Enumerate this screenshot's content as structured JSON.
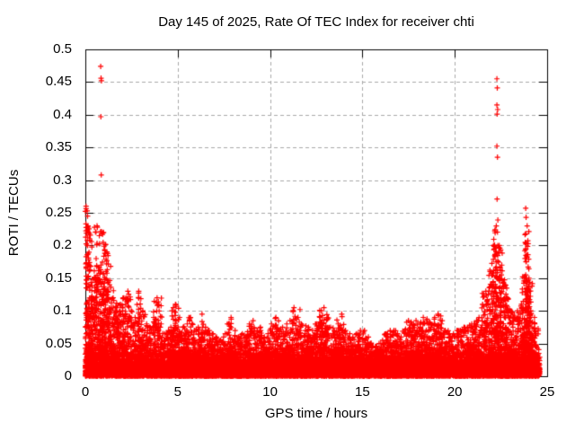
{
  "chart_data": {
    "type": "scatter",
    "title": "Day 145 of 2025, Rate Of TEC Index for receiver chti",
    "xlabel": "GPS time / hours",
    "ylabel": "ROTI / TECUs",
    "xlim": [
      0,
      25
    ],
    "ylim": [
      0,
      0.5
    ],
    "xticks": {
      "values": [
        0,
        5,
        10,
        15,
        20,
        25
      ],
      "labels": [
        "0",
        "5",
        "10",
        "15",
        "20",
        "25"
      ]
    },
    "yticks": {
      "values": [
        0,
        0.05,
        0.1,
        0.15,
        0.2,
        0.25,
        0.3,
        0.35,
        0.4,
        0.45,
        0.5
      ],
      "labels": [
        "0",
        "0.05",
        "0.1",
        "0.15",
        "0.2",
        "0.25",
        "0.3",
        "0.35",
        "0.4",
        "0.45",
        "0.5"
      ]
    },
    "grid": true,
    "grid_color": "#a9a9a9",
    "frame_color": "#000000",
    "marker": {
      "shape": "plus",
      "color": "#ff0000",
      "size": 7
    },
    "data_time_range": [
      0,
      24.6
    ],
    "baseline_band": {
      "solid_max": 0.02,
      "mottled_max": 0.05
    },
    "spike_envelope": [
      [
        0.05,
        0.26
      ],
      [
        0.15,
        0.23
      ],
      [
        0.3,
        0.12
      ],
      [
        0.5,
        0.15
      ],
      [
        0.65,
        0.23
      ],
      [
        0.85,
        0.17
      ],
      [
        1.0,
        0.22
      ],
      [
        1.15,
        0.19
      ],
      [
        1.3,
        0.14
      ],
      [
        1.5,
        0.12
      ],
      [
        1.7,
        0.1
      ],
      [
        1.9,
        0.11
      ],
      [
        2.1,
        0.12
      ],
      [
        2.3,
        0.13
      ],
      [
        2.5,
        0.1
      ],
      [
        2.7,
        0.09
      ],
      [
        2.9,
        0.13
      ],
      [
        3.1,
        0.1
      ],
      [
        3.3,
        0.08
      ],
      [
        3.5,
        0.075
      ],
      [
        3.7,
        0.09
      ],
      [
        3.9,
        0.12
      ],
      [
        4.1,
        0.08
      ],
      [
        4.3,
        0.065
      ],
      [
        4.5,
        0.07
      ],
      [
        4.7,
        0.1
      ],
      [
        4.9,
        0.11
      ],
      [
        5.1,
        0.09
      ],
      [
        5.3,
        0.075
      ],
      [
        5.5,
        0.08
      ],
      [
        5.7,
        0.09
      ],
      [
        5.9,
        0.07
      ],
      [
        6.1,
        0.075
      ],
      [
        6.3,
        0.095
      ],
      [
        6.5,
        0.075
      ],
      [
        6.7,
        0.07
      ],
      [
        6.9,
        0.065
      ],
      [
        7.1,
        0.06
      ],
      [
        7.3,
        0.055
      ],
      [
        7.5,
        0.06
      ],
      [
        7.7,
        0.08
      ],
      [
        7.9,
        0.09
      ],
      [
        8.1,
        0.07
      ],
      [
        8.3,
        0.06
      ],
      [
        8.5,
        0.065
      ],
      [
        8.7,
        0.06
      ],
      [
        8.9,
        0.08
      ],
      [
        9.1,
        0.085
      ],
      [
        9.3,
        0.07
      ],
      [
        9.5,
        0.075
      ],
      [
        9.7,
        0.06
      ],
      [
        9.9,
        0.065
      ],
      [
        10.1,
        0.08
      ],
      [
        10.3,
        0.09
      ],
      [
        10.5,
        0.07
      ],
      [
        10.7,
        0.075
      ],
      [
        10.9,
        0.08
      ],
      [
        11.1,
        0.085
      ],
      [
        11.3,
        0.105
      ],
      [
        11.5,
        0.09
      ],
      [
        11.7,
        0.08
      ],
      [
        11.9,
        0.07
      ],
      [
        12.1,
        0.075
      ],
      [
        12.3,
        0.07
      ],
      [
        12.5,
        0.08
      ],
      [
        12.7,
        0.1
      ],
      [
        12.9,
        0.105
      ],
      [
        13.1,
        0.09
      ],
      [
        13.3,
        0.075
      ],
      [
        13.5,
        0.07
      ],
      [
        13.7,
        0.08
      ],
      [
        13.9,
        0.095
      ],
      [
        14.1,
        0.07
      ],
      [
        14.3,
        0.065
      ],
      [
        14.5,
        0.06
      ],
      [
        14.7,
        0.065
      ],
      [
        14.9,
        0.07
      ],
      [
        15.1,
        0.07
      ],
      [
        15.3,
        0.06
      ],
      [
        15.5,
        0.05
      ],
      [
        15.7,
        0.045
      ],
      [
        15.9,
        0.05
      ],
      [
        16.1,
        0.055
      ],
      [
        16.3,
        0.065
      ],
      [
        16.5,
        0.07
      ],
      [
        16.7,
        0.07
      ],
      [
        16.9,
        0.065
      ],
      [
        17.1,
        0.06
      ],
      [
        17.3,
        0.07
      ],
      [
        17.5,
        0.085
      ],
      [
        17.7,
        0.08
      ],
      [
        17.9,
        0.085
      ],
      [
        18.1,
        0.08
      ],
      [
        18.3,
        0.09
      ],
      [
        18.5,
        0.085
      ],
      [
        18.7,
        0.08
      ],
      [
        18.9,
        0.09
      ],
      [
        19.1,
        0.095
      ],
      [
        19.3,
        0.08
      ],
      [
        19.5,
        0.07
      ],
      [
        19.7,
        0.065
      ],
      [
        19.9,
        0.065
      ],
      [
        20.1,
        0.07
      ],
      [
        20.3,
        0.07
      ],
      [
        20.5,
        0.075
      ],
      [
        20.7,
        0.075
      ],
      [
        20.9,
        0.08
      ],
      [
        21.1,
        0.08
      ],
      [
        21.3,
        0.09
      ],
      [
        21.5,
        0.11
      ],
      [
        21.7,
        0.13
      ],
      [
        21.9,
        0.16
      ],
      [
        22.1,
        0.2
      ],
      [
        22.25,
        0.23
      ],
      [
        22.4,
        0.2
      ],
      [
        22.55,
        0.17
      ],
      [
        22.7,
        0.14
      ],
      [
        22.85,
        0.12
      ],
      [
        23.0,
        0.1
      ],
      [
        23.2,
        0.09
      ],
      [
        23.4,
        0.1
      ],
      [
        23.6,
        0.11
      ],
      [
        23.8,
        0.13
      ],
      [
        23.9,
        0.23
      ],
      [
        24.0,
        0.15
      ],
      [
        24.1,
        0.1
      ],
      [
        24.3,
        0.09
      ],
      [
        24.5,
        0.07
      ]
    ],
    "outlier_points": [
      [
        0.1,
        0.253
      ],
      [
        0.12,
        0.245
      ],
      [
        0.1,
        0.228
      ],
      [
        0.11,
        0.2
      ],
      [
        0.15,
        0.187
      ],
      [
        0.83,
        0.474
      ],
      [
        0.85,
        0.456
      ],
      [
        0.87,
        0.452
      ],
      [
        0.84,
        0.397
      ],
      [
        0.86,
        0.308
      ],
      [
        22.28,
        0.455
      ],
      [
        22.3,
        0.441
      ],
      [
        22.28,
        0.415
      ],
      [
        22.32,
        0.408
      ],
      [
        22.29,
        0.401
      ],
      [
        22.28,
        0.352
      ],
      [
        22.31,
        0.335
      ],
      [
        22.29,
        0.271
      ],
      [
        22.33,
        0.239
      ],
      [
        23.84,
        0.257
      ],
      [
        23.86,
        0.243
      ],
      [
        23.84,
        0.218
      ],
      [
        23.85,
        0.195
      ],
      [
        23.87,
        0.175
      ],
      [
        23.84,
        0.155
      ],
      [
        23.86,
        0.13
      ],
      [
        23.85,
        0.11
      ],
      [
        20.92,
        0.075
      ],
      [
        19.32,
        0.085
      ],
      [
        13.62,
        0.086
      ],
      [
        11.62,
        0.102
      ],
      [
        12.78,
        0.1
      ]
    ],
    "synthesis": {
      "seed": 42,
      "base_step_hours": 0.009,
      "base_points_per_step": 3,
      "base_exp_scale": 0.008,
      "mottle_probability": 0.5,
      "cluster_base_count": 22,
      "cluster_count_per_unit": 420,
      "cluster_halfwidth_hours": 0.26,
      "cluster_power": 2.4
    }
  }
}
